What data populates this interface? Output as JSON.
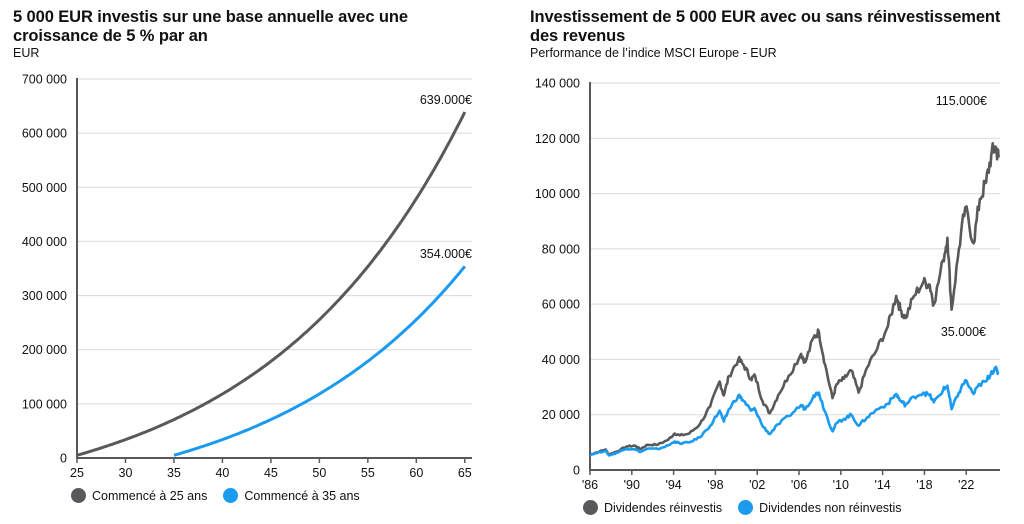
{
  "colors": {
    "dark": "#58595b",
    "blue": "#1a9bf0",
    "grid": "#d9d9d9",
    "axis": "#58595b"
  },
  "chart_data": [
    {
      "type": "line",
      "title": "5 000 EUR investis sur une base annuelle avec une croissance de 5 % par an",
      "subtitle": "EUR",
      "xlabel": "",
      "ylabel": "EUR",
      "xlim": [
        25,
        66
      ],
      "ylim": [
        0,
        700000
      ],
      "x_ticks": [
        25,
        30,
        35,
        40,
        45,
        50,
        55,
        60,
        65
      ],
      "y_ticks": [
        0,
        100000,
        200000,
        300000,
        400000,
        500000,
        600000,
        700000
      ],
      "y_tick_labels": [
        "0",
        "100 000",
        "200 000",
        "300 000",
        "400 000",
        "500 000",
        "600 000",
        "700 000"
      ],
      "grid": "horizontal",
      "legend_position": "bottom-left",
      "series": [
        {
          "name": "Commencé à 25 ans",
          "color_key": "dark",
          "start_age": 25,
          "end_age": 65,
          "annual_contribution": 5000,
          "growth_rate": 0.05,
          "end_value": 639000,
          "annotation": "639.000€",
          "x": [
            25,
            30,
            35,
            40,
            45,
            50,
            55,
            60,
            65
          ],
          "values": [
            5250,
            35700,
            74600,
            124000,
            187000,
            267000,
            369000,
            499000,
            639000
          ]
        },
        {
          "name": "Commencé à 35 ans",
          "color_key": "blue",
          "start_age": 35,
          "end_age": 65,
          "annual_contribution": 5000,
          "growth_rate": 0.05,
          "end_value": 354000,
          "annotation": "354.000€",
          "x": [
            35,
            40,
            45,
            50,
            55,
            60,
            65
          ],
          "values": [
            5250,
            35700,
            74600,
            124000,
            187000,
            267000,
            354000
          ]
        }
      ]
    },
    {
      "type": "line",
      "title": "Investissement de 5 000 EUR avec ou sans réinvestissement des revenus",
      "subtitle": "Performance de l’indice MSCI Europe - EUR",
      "xlabel": "",
      "ylabel": "EUR",
      "xlim": [
        1986,
        2025.9
      ],
      "ylim": [
        0,
        140000
      ],
      "x_ticks": [
        1986,
        1990,
        1994,
        1998,
        2002,
        2006,
        2010,
        2014,
        2018,
        2022
      ],
      "x_tick_labels": [
        "'86",
        "'90",
        "'94",
        "'98",
        "'02",
        "'06",
        "'10",
        "'14",
        "'18",
        "'22"
      ],
      "y_ticks": [
        0,
        20000,
        40000,
        60000,
        80000,
        100000,
        120000,
        140000
      ],
      "y_tick_labels": [
        "0",
        "20 000",
        "40 000",
        "60 000",
        "80 000",
        "100 000",
        "120 000",
        "140 000"
      ],
      "grid": "horizontal",
      "legend_position": "bottom-left",
      "x": [
        1986,
        1986.5,
        1987.5,
        1987.8,
        1988.5,
        1989.5,
        1990.3,
        1990.8,
        1991.5,
        1992.5,
        1993.5,
        1994.1,
        1994.6,
        1995.5,
        1996.5,
        1997.5,
        1998.4,
        1998.8,
        1999.3,
        2000.2,
        2000.7,
        2001.4,
        2001.8,
        2002.5,
        2003.2,
        2004,
        2005,
        2006.2,
        2006.6,
        2007.4,
        2007.9,
        2008.5,
        2009.2,
        2009.6,
        2010.3,
        2011,
        2011.7,
        2012.5,
        2013.5,
        2014.5,
        2015.3,
        2015.7,
        2016.2,
        2017,
        2017.9,
        2018.5,
        2018.9,
        2019.8,
        2020.2,
        2020.6,
        2021.3,
        2021.9,
        2022.7,
        2023.3,
        2023.9,
        2024.4,
        2024.8,
        2025.1
      ],
      "series": [
        {
          "name": "Dividendes réinvestis",
          "color_key": "dark",
          "end_value": 115000,
          "annotation": "115.000€",
          "values": [
            5500,
            6200,
            7400,
            5600,
            6600,
            8500,
            8800,
            7600,
            9100,
            9200,
            11000,
            13200,
            12500,
            13200,
            16500,
            23000,
            32000,
            27000,
            34000,
            40000,
            38000,
            33000,
            34000,
            25000,
            20500,
            27000,
            34000,
            42000,
            39000,
            48000,
            50000,
            38000,
            26000,
            31000,
            33000,
            36000,
            28000,
            37000,
            44000,
            52000,
            63000,
            58000,
            55000,
            63000,
            68000,
            67000,
            60000,
            76000,
            84000,
            58000,
            80000,
            95000,
            82000,
            98000,
            104000,
            114000,
            117000,
            113000
          ]
        },
        {
          "name": "Dividendes non réinvestis",
          "color_key": "blue",
          "end_value": 35000,
          "annotation": "35.000€",
          "values": [
            5500,
            6000,
            7000,
            5300,
            6100,
            7700,
            7600,
            6500,
            7700,
            7600,
            8900,
            10300,
            9600,
            10000,
            11800,
            16000,
            21500,
            17500,
            22000,
            27000,
            25000,
            21500,
            22000,
            16000,
            13000,
            16500,
            19500,
            23500,
            22000,
            27000,
            28000,
            21000,
            14000,
            17000,
            18500,
            20000,
            16000,
            19000,
            22000,
            24000,
            27500,
            25000,
            23500,
            26500,
            28000,
            27000,
            24500,
            29000,
            30500,
            22000,
            28000,
            32500,
            27500,
            31000,
            32000,
            35500,
            36500,
            35000
          ]
        }
      ]
    }
  ],
  "left": {
    "title": "5 000 EUR investis sur une base annuelle avec une croissance de 5 % par an",
    "subtitle": "EUR",
    "legend": [
      {
        "label": "Commencé à 25 ans",
        "color_key": "dark"
      },
      {
        "label": "Commencé à 35 ans",
        "color_key": "blue"
      }
    ]
  },
  "right": {
    "title": "Investissement de 5 000 EUR avec ou sans réinvestissement des revenus",
    "subtitle": "Performance de l’indice MSCI Europe - EUR",
    "legend": [
      {
        "label": "Dividendes réinvestis",
        "color_key": "dark"
      },
      {
        "label": "Dividendes non réinvestis",
        "color_key": "blue"
      }
    ]
  }
}
